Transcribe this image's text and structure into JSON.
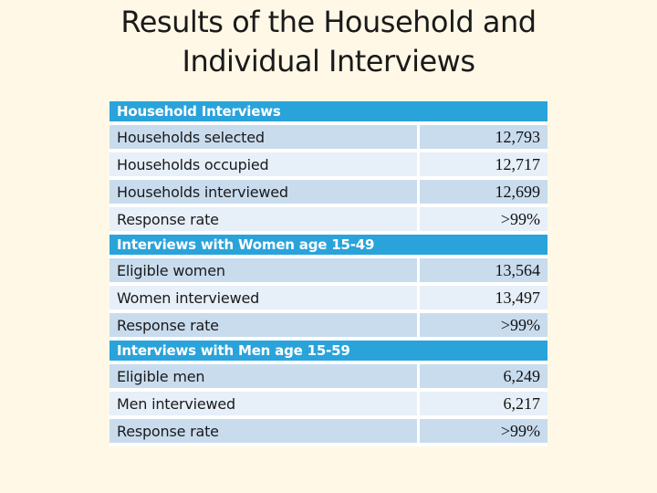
{
  "title": {
    "line1": "Results of the Household and",
    "line2": "Individual Interviews"
  },
  "table": {
    "sections": [
      {
        "header": "Household Interviews",
        "rows": [
          {
            "label": "Households selected",
            "value": "12,793"
          },
          {
            "label": "Households occupied",
            "value": "12,717"
          },
          {
            "label": "Households interviewed",
            "value": "12,699"
          },
          {
            "label": "Response rate",
            "value": ">99%"
          }
        ]
      },
      {
        "header": "Interviews with Women age 15-49",
        "rows": [
          {
            "label": "Eligible women",
            "value": "13,564"
          },
          {
            "label": "Women interviewed",
            "value": "13,497"
          },
          {
            "label": "Response rate",
            "value": ">99%"
          }
        ]
      },
      {
        "header": "Interviews with Men age 15-59",
        "rows": [
          {
            "label": "Eligible men",
            "value": "6,249"
          },
          {
            "label": "Men interviewed",
            "value": "6,217"
          },
          {
            "label": "Response rate",
            "value": ">99%"
          }
        ]
      }
    ]
  },
  "colors": {
    "background": "#FFF8E6",
    "section_header_bg": "#2AA3DB",
    "section_header_text": "#FFFFFF",
    "row_dark_bg": "#C9DCEE",
    "row_light_bg": "#E7EFF8",
    "divider": "#FFFFFF",
    "title_text": "#1A1A1A"
  }
}
